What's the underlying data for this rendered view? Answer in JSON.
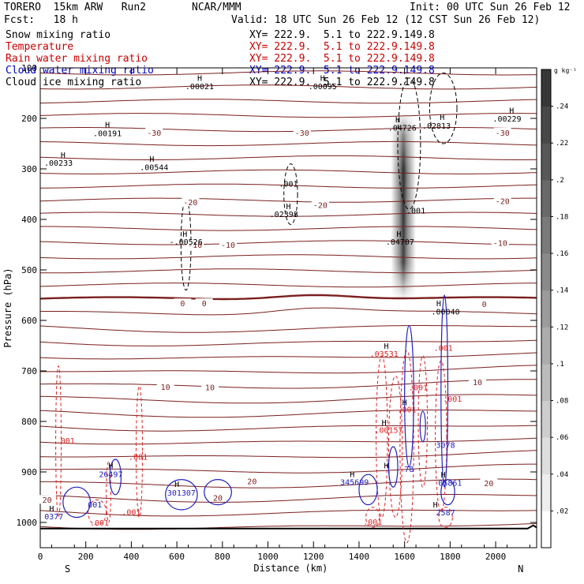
{
  "header": {
    "model": "TORERO  15km ARW   Run2",
    "center": "NCAR/MMM",
    "init": "Init: 00 UTC Sun 26 Feb 12",
    "fcst": "Fcst:   18 h",
    "valid": "Valid: 18 UTC Sun 26 Feb 12 (12 CST Sun 26 Feb 12)"
  },
  "fields": [
    {
      "name": "Snow mixing ratio",
      "xy": "XY= 222.9.  5.1 to 222.9.149.8",
      "color": "#000000"
    },
    {
      "name": "Temperature",
      "xy": "XY= 222.9.  5.1 to 222.9.149.8",
      "color": "#cc0000"
    },
    {
      "name": "Rain water mixing ratio",
      "xy": "XY= 222.9.  5.1 to 222.9.149.8",
      "color": "#cc0000"
    },
    {
      "name": "Cloud water mixing ratio",
      "xy": "XY= 222.9.  5.1 to 222.9.149.8",
      "color": "#0000cc"
    },
    {
      "name": "Cloud ice mixing ratio",
      "xy": "XY= 222.9.  5.1 to 222.9.149.8",
      "color": "#000000"
    }
  ],
  "chart_data": {
    "type": "cross-section contour",
    "xlabel": "Distance (km)",
    "ylabel": "Pressure (hPa)",
    "xlim": [
      0,
      2180
    ],
    "ylim": [
      1050,
      100
    ],
    "xticks": [
      0,
      200,
      400,
      600,
      800,
      1000,
      1200,
      1400,
      1600,
      1800,
      2000
    ],
    "yticks": [
      100,
      200,
      300,
      400,
      500,
      600,
      700,
      800,
      900,
      1000
    ],
    "x_ends": [
      "S",
      "N"
    ],
    "colorbar": {
      "unit": "g kg⁻¹",
      "ticks": [
        ".02",
        ".04",
        ".06",
        ".08",
        ".1",
        ".12",
        ".14",
        ".16",
        ".18",
        ".2",
        ".22",
        ".24"
      ],
      "values": [
        0.02,
        0.04,
        0.06,
        0.08,
        0.1,
        0.12,
        0.14,
        0.16,
        0.18,
        0.2,
        0.22,
        0.24
      ],
      "max": 0.26
    },
    "temperature_labels": [
      {
        "x": 2030,
        "p": 228,
        "label": "-30"
      },
      {
        "x": 1150,
        "p": 228,
        "label": "-30"
      },
      {
        "x": 500,
        "p": 228,
        "label": "-30"
      },
      {
        "x": 2030,
        "p": 363,
        "label": "-20"
      },
      {
        "x": 1230,
        "p": 371,
        "label": "-20"
      },
      {
        "x": 660,
        "p": 366,
        "label": "-20"
      },
      {
        "x": 2020,
        "p": 446,
        "label": "-10"
      },
      {
        "x": 825,
        "p": 450,
        "label": "-10"
      },
      {
        "x": 680,
        "p": 450,
        "label": "-10"
      },
      {
        "x": 1950,
        "p": 567,
        "label": "0"
      },
      {
        "x": 720,
        "p": 566,
        "label": "0"
      },
      {
        "x": 625,
        "p": 566,
        "label": "0"
      },
      {
        "x": 1920,
        "p": 722,
        "label": "10"
      },
      {
        "x": 745,
        "p": 732,
        "label": "10"
      },
      {
        "x": 550,
        "p": 731,
        "label": "10"
      },
      {
        "x": 1970,
        "p": 922,
        "label": "20"
      },
      {
        "x": 930,
        "p": 918,
        "label": "20"
      },
      {
        "x": 780,
        "p": 951,
        "label": "20"
      },
      {
        "x": 30,
        "p": 955,
        "label": "20"
      }
    ],
    "maxima": [
      {
        "x": 700,
        "p": 142,
        "label": ".00021"
      },
      {
        "x": 1240,
        "p": 142,
        "label": ".00095"
      },
      {
        "x": 295,
        "p": 235,
        "label": ".00191"
      },
      {
        "x": 80,
        "p": 294,
        "label": ".00233"
      },
      {
        "x": 500,
        "p": 302,
        "label": ".00544"
      },
      {
        "x": 1090,
        "p": 335,
        "label": ".001"
      },
      {
        "x": 1070,
        "p": 395,
        "label": ".02398"
      },
      {
        "x": 1590,
        "p": 224,
        "label": ".04726"
      },
      {
        "x": 1740,
        "p": 220,
        "label": ".02813"
      },
      {
        "x": 2050,
        "p": 206,
        "label": ".00229"
      },
      {
        "x": 1650,
        "p": 388,
        "label": ".001"
      },
      {
        "x": 640,
        "p": 450,
        "label": "-.00526"
      },
      {
        "x": 1580,
        "p": 450,
        "label": ".04707"
      },
      {
        "x": 1780,
        "p": 588,
        "label": ".00040"
      },
      {
        "x": 1510,
        "p": 672,
        "label": ".03531"
      },
      {
        "x": 1770,
        "p": 660,
        "label": ".001"
      },
      {
        "x": 1660,
        "p": 738,
        "label": ".001"
      },
      {
        "x": 1810,
        "p": 761,
        "label": ".001"
      },
      {
        "x": 1610,
        "p": 782,
        "label": ".001"
      },
      {
        "x": 1530,
        "p": 823,
        "label": ".00157"
      },
      {
        "x": 110,
        "p": 844,
        "label": ".001"
      },
      {
        "x": 430,
        "p": 876,
        "label": ".001"
      },
      {
        "x": 1780,
        "p": 852,
        "label": "3078"
      },
      {
        "x": 310,
        "p": 910,
        "label": "26497"
      },
      {
        "x": 620,
        "p": 947,
        "label": "301307"
      },
      {
        "x": 1380,
        "p": 926,
        "label": "345699"
      },
      {
        "x": 1620,
        "p": 900,
        "label": "78"
      },
      {
        "x": 1800,
        "p": 927,
        "label": "05861"
      },
      {
        "x": 240,
        "p": 970,
        "label": "001"
      },
      {
        "x": 400,
        "p": 985,
        "label": ".001"
      },
      {
        "x": 60,
        "p": 994,
        "label": "0377"
      },
      {
        "x": 1780,
        "p": 986,
        "label": "2587"
      },
      {
        "x": 260,
        "p": 1006,
        "label": ".001"
      },
      {
        "x": 1460,
        "p": 1005,
        "label": ".001"
      }
    ],
    "h_markers": [
      {
        "x": 700,
        "p": 126
      },
      {
        "x": 1240,
        "p": 126
      },
      {
        "x": 295,
        "p": 218
      },
      {
        "x": 1570,
        "p": 208
      },
      {
        "x": 1765,
        "p": 203
      },
      {
        "x": 2070,
        "p": 190
      },
      {
        "x": 100,
        "p": 278
      },
      {
        "x": 490,
        "p": 286
      },
      {
        "x": 1090,
        "p": 380
      },
      {
        "x": 635,
        "p": 434
      },
      {
        "x": 1575,
        "p": 434
      },
      {
        "x": 1750,
        "p": 572
      },
      {
        "x": 1520,
        "p": 656
      },
      {
        "x": 1600,
        "p": 768
      },
      {
        "x": 1510,
        "p": 808
      },
      {
        "x": 310,
        "p": 893
      },
      {
        "x": 600,
        "p": 930
      },
      {
        "x": 1370,
        "p": 910
      },
      {
        "x": 1770,
        "p": 911
      },
      {
        "x": 50,
        "p": 978
      },
      {
        "x": 1735,
        "p": 970
      },
      {
        "x": 1520,
        "p": 893
      }
    ]
  }
}
